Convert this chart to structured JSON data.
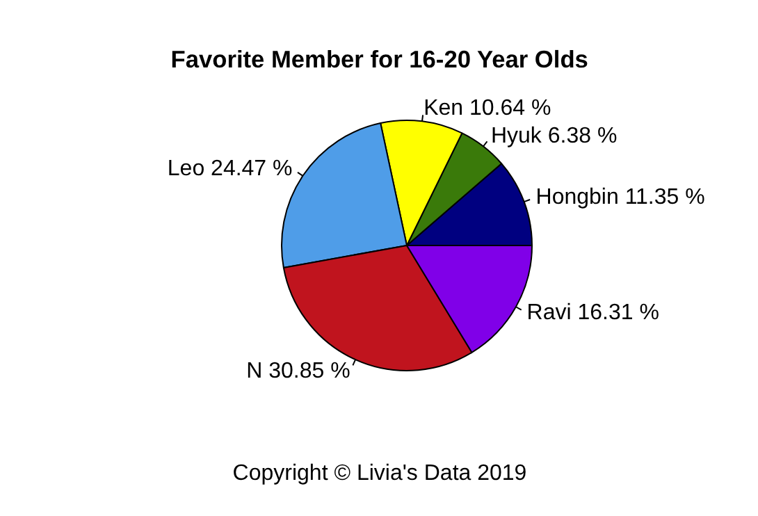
{
  "chart_data": {
    "type": "pie",
    "title": "Favorite Member for 16-20 Year Olds",
    "categories": [
      "Hongbin",
      "Hyuk",
      "Ken",
      "Leo",
      "N",
      "Ravi"
    ],
    "values": [
      11.35,
      6.38,
      10.64,
      24.47,
      30.85,
      16.31
    ],
    "value_labels": [
      "11.35 %",
      "6.38 %",
      "10.64 %",
      "24.47 %",
      "30.85 %",
      "16.31 %"
    ],
    "colors": [
      "#000080",
      "#3a7a0a",
      "#ffff00",
      "#4f9de8",
      "#c0141e",
      "#8000e8"
    ],
    "annotations": [
      "Copyright © Livia's Data 2019"
    ]
  }
}
